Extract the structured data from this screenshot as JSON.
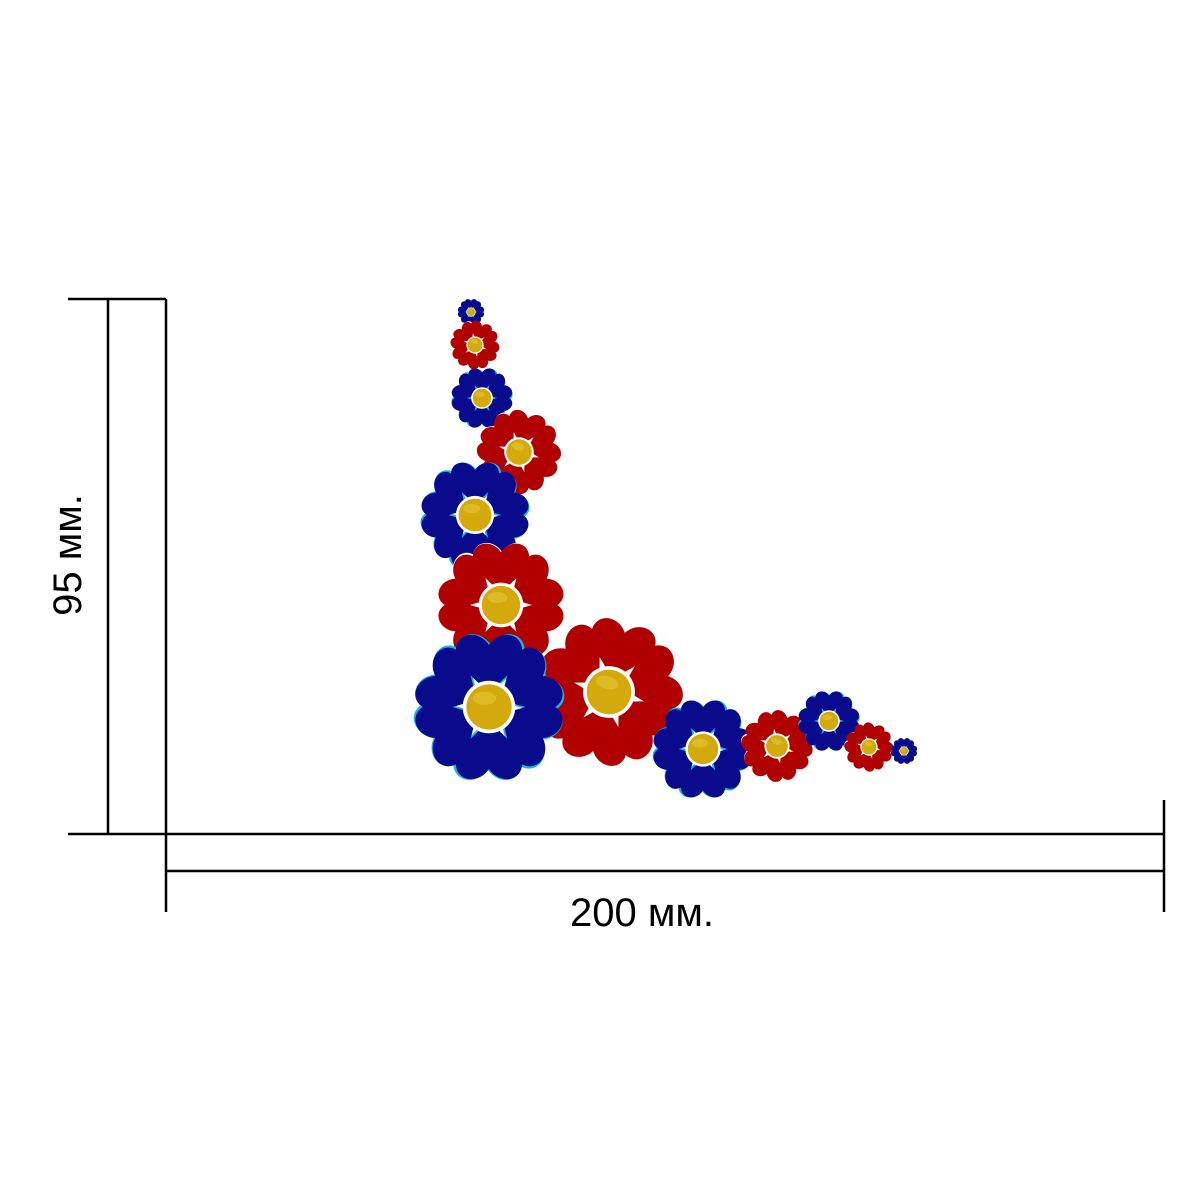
{
  "dimensions": {
    "width_label": "200 мм.",
    "height_label": "95 мм."
  },
  "colors": {
    "blue_petal": "#0a0a8c",
    "blue_outline": "#17b6e6",
    "red_petal": "#b10000",
    "red_outline": "#ffffff",
    "center": "#d3a90c",
    "center_ring": "#ffffff",
    "line": "#000000"
  },
  "flowers": [
    {
      "name": "flower-blue-top-tiny",
      "color": "blue"
    },
    {
      "name": "flower-red-top-small",
      "color": "red"
    },
    {
      "name": "flower-blue-top-small",
      "color": "blue"
    },
    {
      "name": "flower-red-upper-mid",
      "color": "red"
    },
    {
      "name": "flower-blue-mid-left",
      "color": "blue"
    },
    {
      "name": "flower-red-mid-left",
      "color": "red"
    },
    {
      "name": "flower-red-corner-large",
      "color": "red"
    },
    {
      "name": "flower-blue-corner-large",
      "color": "blue"
    },
    {
      "name": "flower-blue-bottom-mid",
      "color": "blue"
    },
    {
      "name": "flower-red-bottom-mid",
      "color": "red"
    },
    {
      "name": "flower-blue-bottom-small",
      "color": "blue"
    },
    {
      "name": "flower-red-bottom-small",
      "color": "red"
    },
    {
      "name": "flower-blue-bottom-tiny",
      "color": "blue"
    }
  ]
}
